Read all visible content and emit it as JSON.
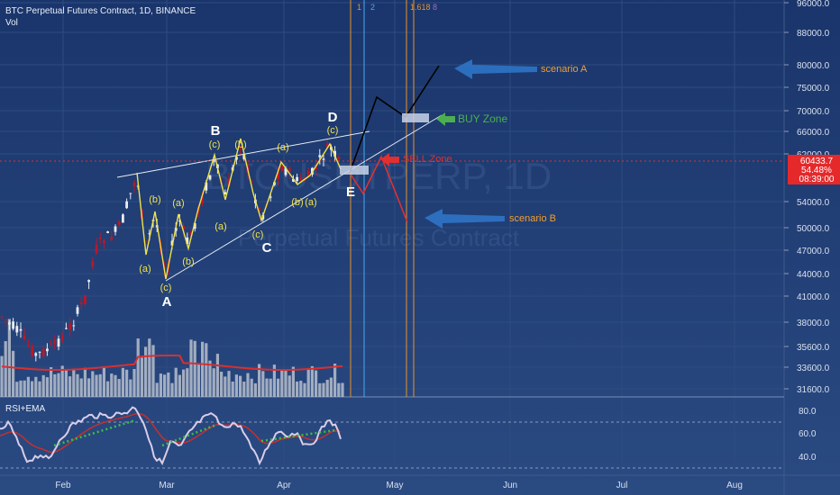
{
  "header": {
    "title": "BTC Perpetual Futures Contract, 1D, BINANCE",
    "volume_label": "Vol"
  },
  "rsi_panel": {
    "label": "RSI+EMA",
    "ticks": [
      "80.0",
      "60.0",
      "40.0"
    ]
  },
  "price_axis": {
    "ticks": [
      "96000.0",
      "88000.0",
      "80000.0",
      "75000.0",
      "70000.0",
      "66000.0",
      "62000.0",
      "54000.0",
      "50000.0",
      "47000.0",
      "44000.0",
      "41000.0",
      "38000.0",
      "35600.0",
      "33600.0",
      "31600.0"
    ],
    "last_price": "60433.7",
    "last_change": "54.48%",
    "countdown": "08:39:00"
  },
  "time_axis": {
    "labels": [
      "Feb",
      "Mar",
      "Apr",
      "May",
      "Jun",
      "Jul",
      "Aug"
    ]
  },
  "fib_labels": [
    "1",
    "2",
    "1.618"
  ],
  "wave_labels": {
    "major": [
      "A",
      "B",
      "C",
      "D",
      "E"
    ],
    "minor": [
      "(a)",
      "(b)",
      "(c)",
      "(a)",
      "(b)",
      "(c)",
      "(b)",
      "(a)",
      "(c)",
      "(b)",
      "(a)",
      "(c)",
      "(a)",
      "(b)",
      "(c)"
    ]
  },
  "annotations": {
    "scenario_a": "scenario A",
    "scenario_b": "scenario B",
    "buy_zone": "BUY Zone",
    "sell_zone": "SELL Zone"
  },
  "watermark": {
    "symbol": "BTCUSDTPERP, 1D",
    "name": "Perpetual Futures Contract"
  },
  "colors": {
    "background": "#1f3a6e",
    "wave_label": "#f0e24a",
    "bullish_path": "#000000",
    "bearish_path": "#e03030",
    "annotation_text": "#f0a030",
    "arrow_blue": "#2f74c6",
    "buy_zone": "#4caf50",
    "sell_zone": "#e03030",
    "volume_bar": "#b9c0cc",
    "volume_ma": "#d83030",
    "rsi_line": "#d8cde8",
    "ema_line": "#c03030",
    "rsi_trend": "#3cc040",
    "fib_line": "#e8932a",
    "projection_line": "#4aa8f0",
    "last_price_bg": "#e5292b"
  },
  "chart_data": {
    "type": "candlestick",
    "title": "BTC Perpetual Futures Contract, 1D, BINANCE",
    "x_axis_labels": [
      "Feb",
      "Mar",
      "Apr",
      "May",
      "Jun",
      "Jul",
      "Aug"
    ],
    "y_axis_ticks": [
      96000,
      88000,
      80000,
      75000,
      70000,
      66000,
      62000,
      54000,
      50000,
      47000,
      44000,
      41000,
      38000,
      35600,
      33600,
      31600
    ],
    "last_price": 60433.7,
    "rsi_range": [
      40,
      80
    ],
    "wave_points": [
      {
        "label": "A",
        "price": 43000
      },
      {
        "label": "B",
        "price": 61000
      },
      {
        "label": "C",
        "price": 51000
      },
      {
        "label": "D",
        "price": 64000
      },
      {
        "label": "E",
        "price": 57000
      }
    ],
    "scenarios": [
      {
        "name": "scenario A",
        "target": 80000
      },
      {
        "name": "scenario B",
        "target": 53000
      }
    ],
    "grid": true
  }
}
